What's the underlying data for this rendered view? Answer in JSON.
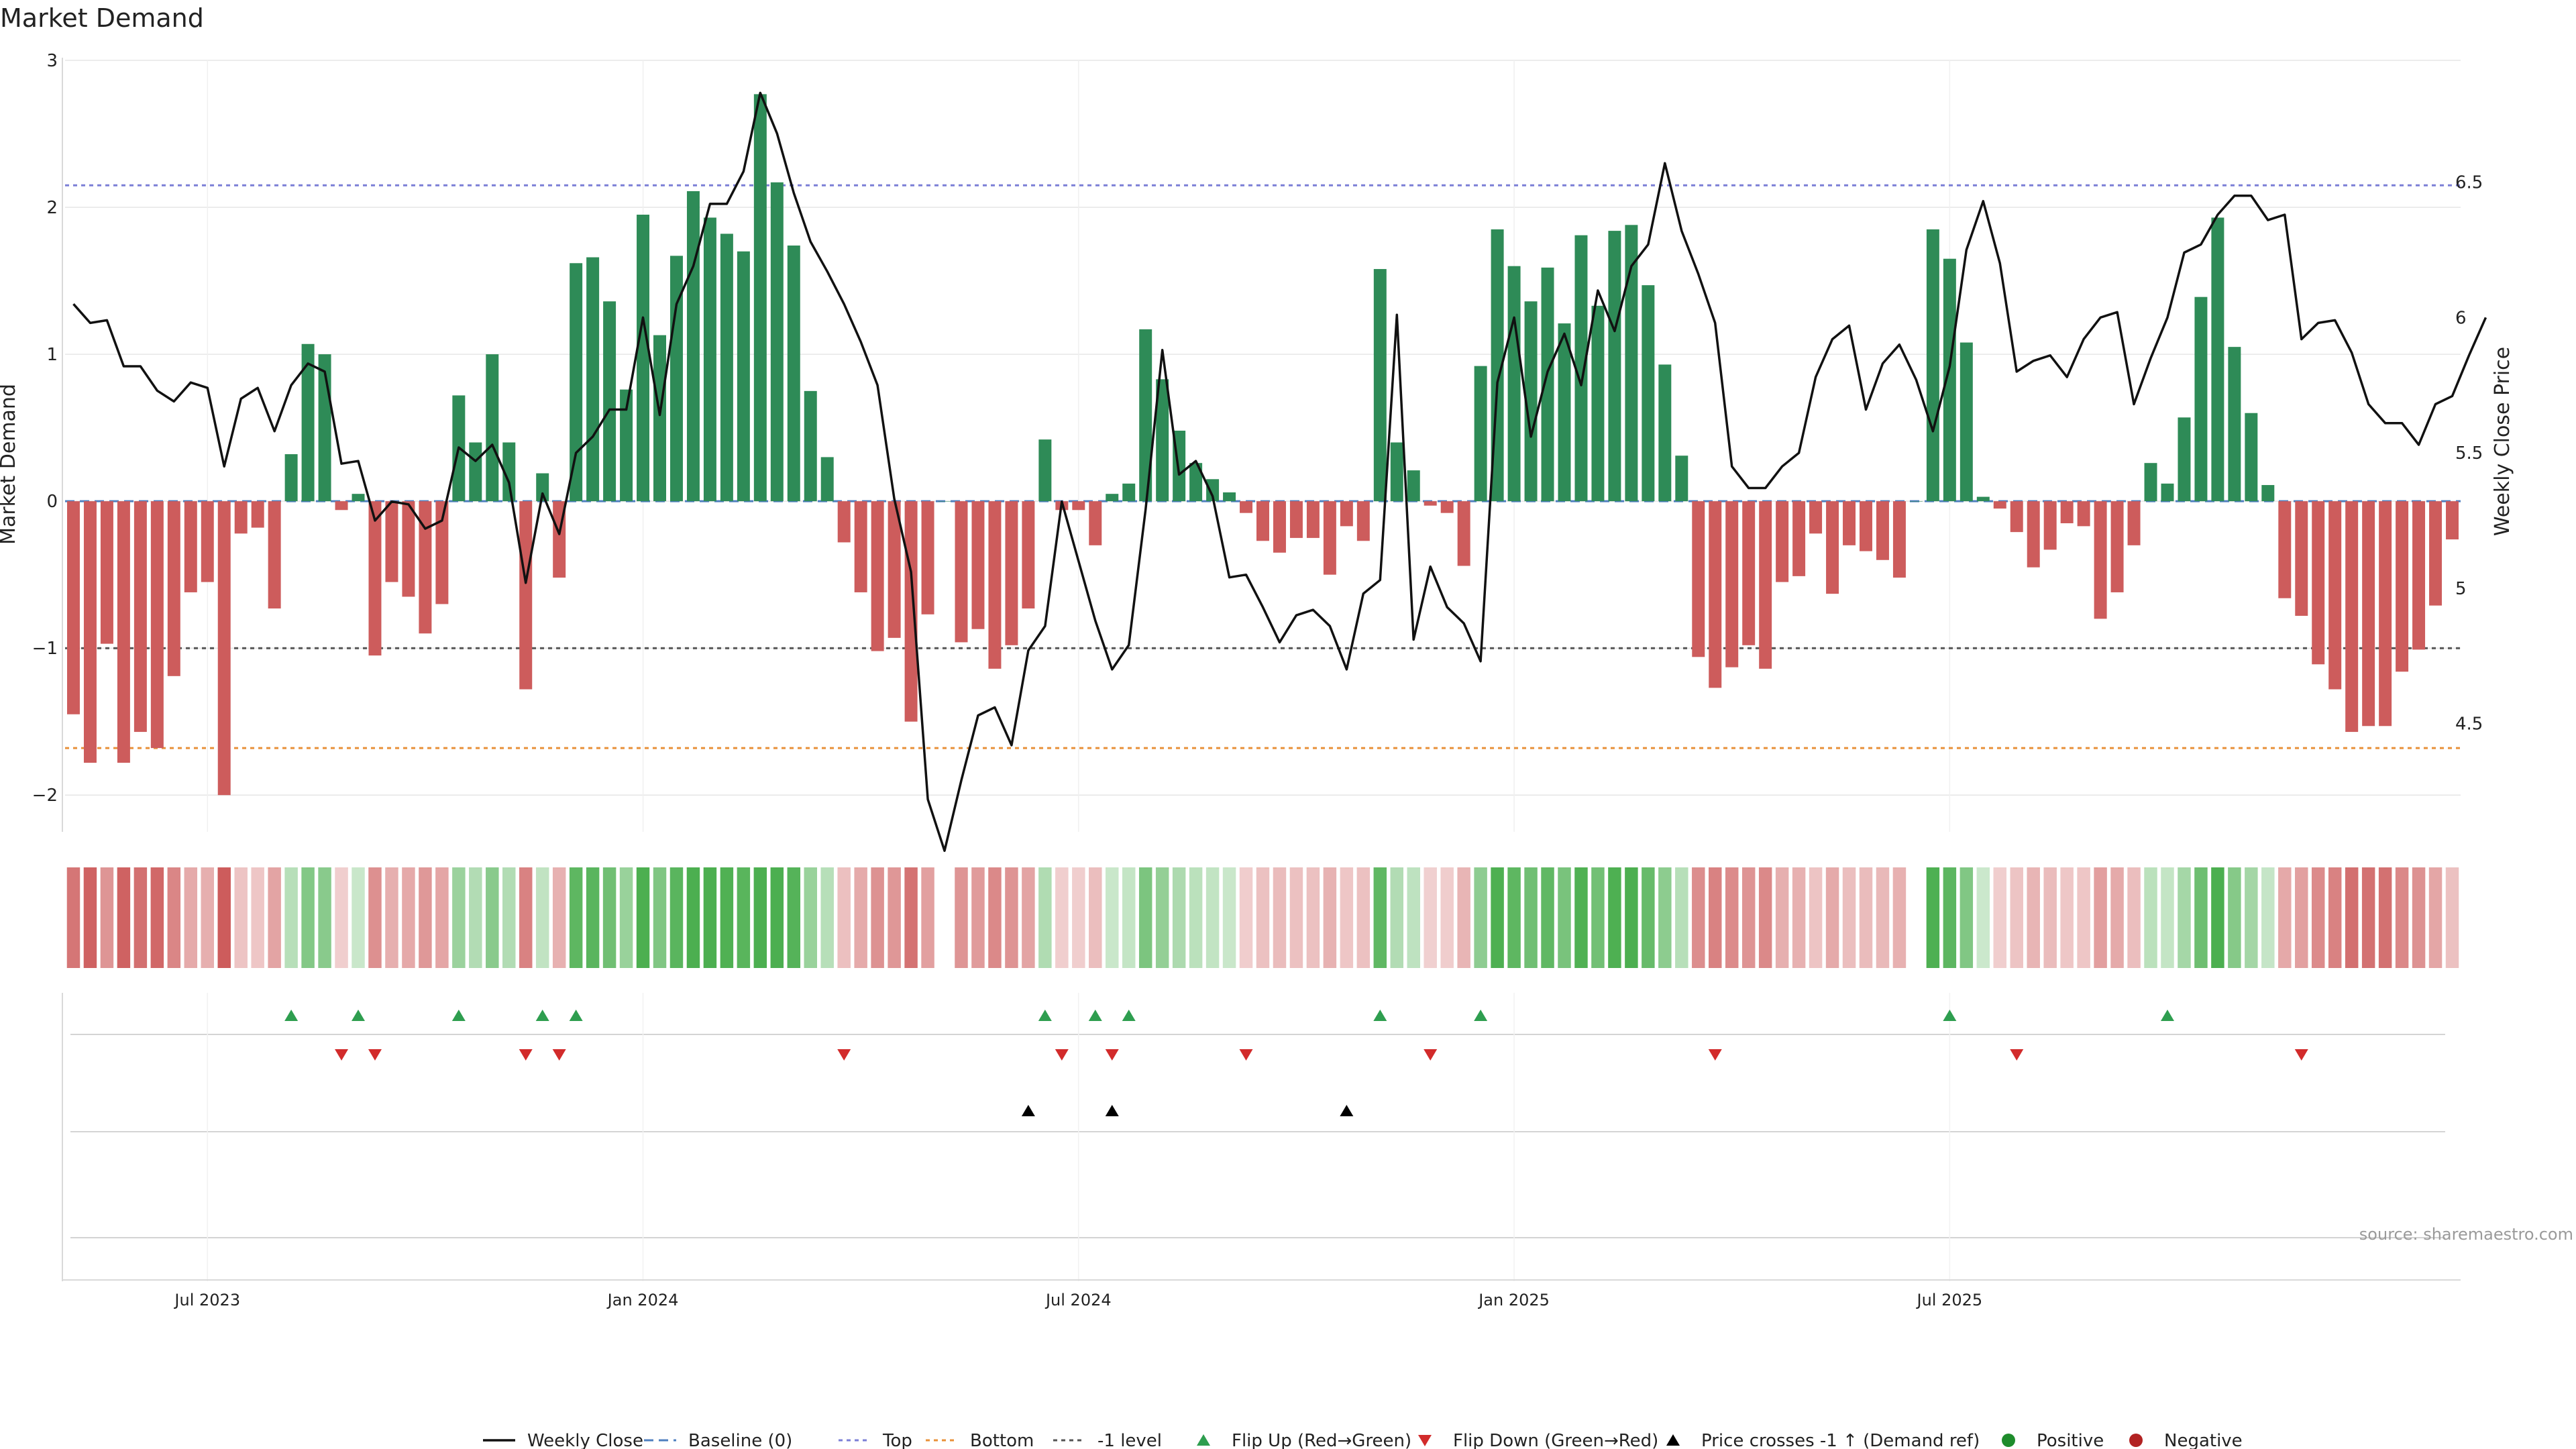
{
  "chart_data": {
    "type": "bar",
    "title": "Market Demand",
    "ylabel": "Market Demand",
    "y2label": "Weekly Close Price",
    "source": "source: sharemaestro.com",
    "ylim": [
      -2.25,
      3.0
    ],
    "y2lim": [
      4.1,
      6.95
    ],
    "yticks": [
      3,
      2,
      1,
      0,
      -1,
      -2
    ],
    "yticks_text": [
      "3",
      "2",
      "1",
      "0",
      "−1",
      "−2"
    ],
    "y2ticks": [
      6.5,
      6,
      5.5,
      5,
      4.5
    ],
    "y2ticks_text": [
      "6.5",
      "6",
      "5.5",
      "5",
      "4.5"
    ],
    "xticks": [
      8,
      34,
      60,
      86,
      112
    ],
    "xtick_labels": [
      "Jul 2023",
      "Jan 2024",
      "Jul 2024",
      "Jan 2025",
      "Jul 2025"
    ],
    "reference_lines": {
      "top": 2.15,
      "bottom": -1.68,
      "minus_one": -1.0,
      "baseline": 0
    },
    "demand": [
      -1.45,
      -1.78,
      -0.97,
      -1.78,
      -1.57,
      -1.68,
      -1.19,
      -0.62,
      -0.55,
      -2.0,
      -0.22,
      -0.18,
      -0.73,
      0.32,
      1.07,
      1.0,
      -0.06,
      0.05,
      -1.05,
      -0.55,
      -0.65,
      -0.9,
      -0.7,
      0.72,
      0.4,
      1.0,
      0.4,
      -1.28,
      0.19,
      -0.52,
      1.62,
      1.66,
      1.36,
      0.76,
      1.95,
      1.13,
      1.67,
      2.11,
      1.93,
      1.82,
      1.7,
      2.77,
      2.17,
      1.74,
      0.75,
      0.3,
      -0.28,
      -0.62,
      -1.02,
      -0.93,
      -1.5,
      -0.77,
      0.0,
      -0.96,
      -0.87,
      -1.14,
      -0.98,
      -0.73,
      0.42,
      -0.06,
      -0.06,
      -0.3,
      0.05,
      0.12,
      1.17,
      0.83,
      0.48,
      0.26,
      0.15,
      0.06,
      -0.08,
      -0.27,
      -0.35,
      -0.25,
      -0.25,
      -0.5,
      -0.17,
      -0.27,
      1.58,
      0.4,
      0.21,
      -0.03,
      -0.08,
      -0.44,
      0.92,
      1.85,
      1.6,
      1.36,
      1.59,
      1.21,
      1.81,
      1.33,
      1.84,
      1.88,
      1.47,
      0.93,
      0.31,
      -1.06,
      -1.27,
      -1.13,
      -0.98,
      -1.14,
      -0.55,
      -0.51,
      -0.22,
      -0.63,
      -0.3,
      -0.34,
      -0.4,
      -0.52,
      0.0,
      1.85,
      1.65,
      1.08,
      0.03,
      -0.05,
      -0.21,
      -0.45,
      -0.33,
      -0.15,
      -0.17,
      -0.8,
      -0.62,
      -0.3,
      0.26,
      0.12,
      0.57,
      1.39,
      1.93,
      1.05,
      0.6,
      0.11,
      -0.66,
      -0.78,
      -1.11,
      -1.28,
      -1.57,
      -1.53,
      -1.53,
      -1.16,
      -1.01,
      -0.71,
      -0.26
    ],
    "weekly_close": [
      6.05,
      5.98,
      5.99,
      5.82,
      5.82,
      5.73,
      5.69,
      5.76,
      5.74,
      5.45,
      5.7,
      5.74,
      5.58,
      5.75,
      5.83,
      5.8,
      5.46,
      5.47,
      5.25,
      5.32,
      5.31,
      5.22,
      5.25,
      5.52,
      5.47,
      5.53,
      5.39,
      5.02,
      5.35,
      5.2,
      5.5,
      5.56,
      5.66,
      5.66,
      6.0,
      5.64,
      6.05,
      6.19,
      6.42,
      6.42,
      6.54,
      6.83,
      6.68,
      6.46,
      6.28,
      6.17,
      6.05,
      5.91,
      5.75,
      5.33,
      5.06,
      4.22,
      4.03,
      4.29,
      4.53,
      4.56,
      4.42,
      4.77,
      4.86,
      5.32,
      5.1,
      4.88,
      4.7,
      4.79,
      5.29,
      5.88,
      5.42,
      5.47,
      5.34,
      5.04,
      5.05,
      4.93,
      4.8,
      4.9,
      4.92,
      4.86,
      4.7,
      4.98,
      5.03,
      6.01,
      4.81,
      5.08,
      4.93,
      4.87,
      4.73,
      5.76,
      6.0,
      5.56,
      5.8,
      5.94,
      5.75,
      6.1,
      5.95,
      6.19,
      6.27,
      6.57,
      6.32,
      6.16,
      5.98,
      5.45,
      5.37,
      5.37,
      5.45,
      5.5,
      5.78,
      5.92,
      5.97,
      5.66,
      5.83,
      5.9,
      5.77,
      5.58,
      5.82,
      6.25,
      6.43,
      6.2,
      5.8,
      5.84,
      5.86,
      5.78,
      5.92,
      6.0,
      6.02,
      5.68,
      5.85,
      6.0,
      6.24,
      6.27,
      6.38,
      6.45,
      6.45,
      6.36,
      6.38,
      5.92,
      5.98,
      5.99,
      5.87,
      5.68,
      5.61,
      5.61,
      5.53,
      5.68,
      5.71,
      5.86,
      6.0
    ],
    "series": [
      {
        "name": "Weekly Close",
        "color": "#111111"
      },
      {
        "name": "Baseline (0)",
        "color": "#4f7fbf"
      },
      {
        "name": "Top",
        "color": "#7b7fd6"
      },
      {
        "name": "Bottom",
        "color": "#e8913a"
      },
      {
        "name": "-1 level",
        "color": "#555555"
      },
      {
        "name": "Flip Up (Red→Green)",
        "color": "#2e9e4f"
      },
      {
        "name": "Flip Down (Green→Red)",
        "color": "#d22b2b"
      },
      {
        "name": "Price crosses -1 ↑ (Demand ref)",
        "color": "#000000"
      },
      {
        "name": "Positive",
        "color": "#1e8c2c"
      },
      {
        "name": "Negative",
        "color": "#b22222"
      }
    ],
    "flip_up_weeks": [
      13,
      17,
      23,
      28,
      30,
      58,
      61,
      63,
      78,
      84,
      112,
      125
    ],
    "flip_down_weeks": [
      16,
      18,
      27,
      29,
      46,
      59,
      62,
      70,
      81,
      98,
      116,
      133
    ],
    "price_cross_weeks": [
      57,
      62,
      76
    ],
    "colors": {
      "positive_bar": "#2e8b57",
      "negative_bar": "#cd5c5c",
      "strip_green": "#4caf50",
      "strip_red": "#cd5c5c",
      "grid": "#e6e6e6",
      "axis": "#d9d9d9",
      "text": "#222222",
      "source_text": "#9a9a9a"
    }
  }
}
